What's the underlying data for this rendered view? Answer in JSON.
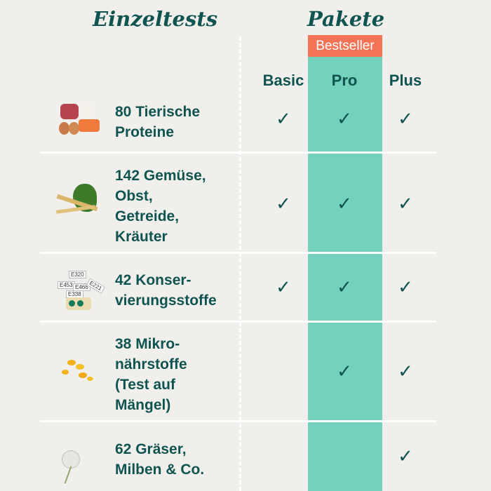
{
  "header": {
    "left_title": "Einzeltests",
    "right_title": "Pakete",
    "badge": "Bestseller"
  },
  "columns": [
    "Basic",
    "Pro",
    "Plus"
  ],
  "colors": {
    "background": "#f1efeb",
    "text": "#0f5450",
    "pro": "#74d1bb",
    "badge": "#f47356"
  },
  "rows": [
    {
      "label": [
        "80 Tierische",
        "Proteine"
      ],
      "icon": "meat-fish-eggs-icon",
      "checks": [
        true,
        true,
        true
      ]
    },
    {
      "label": [
        "142 Gemüse,",
        "Obst,",
        "Getreide,",
        "Kräuter"
      ],
      "icon": "spinach-grain-icon",
      "checks": [
        true,
        true,
        true
      ]
    },
    {
      "label": [
        "42 Konser-",
        "vierungsstoffe"
      ],
      "icon": "e-number-signs-icon",
      "checks": [
        true,
        true,
        true
      ],
      "tags": [
        "E320",
        "E453",
        "E466",
        "E221",
        "E338"
      ]
    },
    {
      "label": [
        "38 Mikro-",
        "nährstoffe",
        "(Test auf",
        "Mängel)"
      ],
      "icon": "capsules-icon",
      "checks": [
        false,
        true,
        true
      ]
    },
    {
      "label": [
        "62 Gräser,",
        "Milben & Co."
      ],
      "icon": "dandelion-icon",
      "checks": [
        false,
        false,
        true
      ]
    }
  ],
  "check_symbol": "✓"
}
